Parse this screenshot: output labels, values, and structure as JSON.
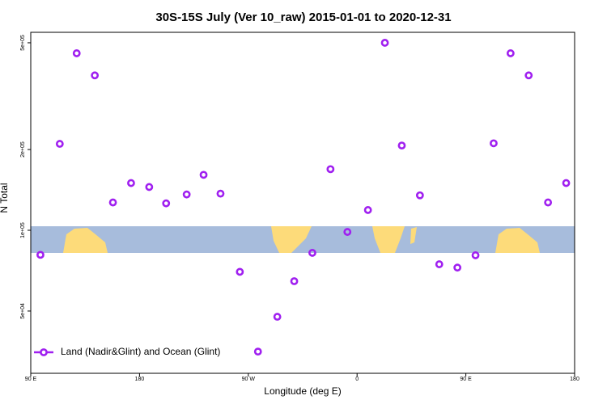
{
  "chart_data": {
    "type": "scatter",
    "title": "30S-15S July (Ver 10_raw)   2015-01-01 to 2020-12-31",
    "x_label": "Longitude (deg E)",
    "y_label": "N Total",
    "log_y": true,
    "legend_position": "bottom-left",
    "xlim": [
      90,
      540
    ],
    "xticks": [
      {
        "value": 90,
        "label": "90 E"
      },
      {
        "value": 180,
        "label": "180"
      },
      {
        "value": 270,
        "label": "90 W"
      },
      {
        "value": 360,
        "label": "0"
      },
      {
        "value": 450,
        "label": "90 E"
      },
      {
        "value": 540,
        "label": "180"
      }
    ],
    "ylim": [
      29300,
      547000
    ],
    "yticks": [
      {
        "value": 50000,
        "label": "5e+04"
      },
      {
        "value": 100000,
        "label": "1e+05"
      },
      {
        "value": 200000,
        "label": "2e+05"
      },
      {
        "value": 500000,
        "label": "5e+05"
      }
    ],
    "series": [
      {
        "name": "Land (Nadir&Glint) and Ocean (Glint)",
        "color": "#a020f0",
        "x": [
          98,
          114,
          128,
          143,
          158,
          173,
          188,
          202,
          219,
          233,
          247,
          263,
          278,
          294,
          308,
          323,
          338,
          352,
          369,
          383,
          397,
          412,
          428,
          443,
          458,
          473,
          487,
          502,
          518,
          533
        ],
        "values": [
          81000,
          210000,
          457000,
          378000,
          127000,
          150000,
          145000,
          126000,
          136000,
          161000,
          137000,
          70000,
          35300,
          47600,
          64600,
          82400,
          169000,
          98600,
          119000,
          500000,
          207000,
          135000,
          74700,
          72600,
          80700,
          211000,
          457000,
          378000,
          127000,
          150000
        ]
      }
    ]
  }
}
